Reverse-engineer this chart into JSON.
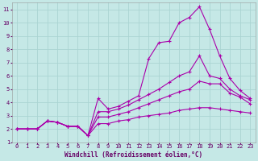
{
  "xlabel": "Windchill (Refroidissement éolien,°C)",
  "bg_color": "#c5e8e6",
  "grid_color": "#aad4d2",
  "line_color": "#aa00aa",
  "xlim": [
    -0.5,
    23.5
  ],
  "ylim": [
    1,
    11.5
  ],
  "xticks": [
    0,
    1,
    2,
    3,
    4,
    5,
    6,
    7,
    8,
    9,
    10,
    11,
    12,
    13,
    14,
    15,
    16,
    17,
    18,
    19,
    20,
    21,
    22,
    23
  ],
  "yticks": [
    1,
    2,
    3,
    4,
    5,
    6,
    7,
    8,
    9,
    10,
    11
  ],
  "line1_x": [
    0,
    1,
    2,
    3,
    4,
    5,
    6,
    7,
    8,
    9,
    10,
    11,
    12,
    13,
    14,
    15,
    16,
    17,
    18,
    19,
    20,
    21,
    22,
    23
  ],
  "line1_y": [
    2,
    2,
    2,
    2.6,
    2.5,
    2.2,
    2.2,
    1.5,
    4.3,
    3.5,
    3.7,
    4.1,
    4.5,
    7.3,
    8.5,
    8.6,
    10.0,
    10.4,
    11.2,
    9.5,
    7.5,
    5.8,
    4.9,
    4.3
  ],
  "line2_x": [
    0,
    1,
    2,
    3,
    4,
    5,
    6,
    7,
    8,
    9,
    10,
    11,
    12,
    13,
    14,
    15,
    16,
    17,
    18,
    19,
    20,
    21,
    22,
    23
  ],
  "line2_y": [
    2,
    2,
    2,
    2.6,
    2.5,
    2.2,
    2.2,
    1.5,
    3.3,
    3.3,
    3.5,
    3.8,
    4.2,
    4.6,
    5.0,
    5.5,
    6.0,
    6.3,
    7.5,
    6.0,
    5.8,
    5.0,
    4.5,
    4.2
  ],
  "line3_x": [
    0,
    1,
    2,
    3,
    4,
    5,
    6,
    7,
    8,
    9,
    10,
    11,
    12,
    13,
    14,
    15,
    16,
    17,
    18,
    19,
    20,
    21,
    22,
    23
  ],
  "line3_y": [
    2,
    2,
    2,
    2.6,
    2.5,
    2.2,
    2.2,
    1.5,
    2.9,
    2.9,
    3.1,
    3.3,
    3.6,
    3.9,
    4.2,
    4.5,
    4.8,
    5.0,
    5.6,
    5.4,
    5.4,
    4.7,
    4.4,
    3.9
  ],
  "line4_x": [
    0,
    1,
    2,
    3,
    4,
    5,
    6,
    7,
    8,
    9,
    10,
    11,
    12,
    13,
    14,
    15,
    16,
    17,
    18,
    19,
    20,
    21,
    22,
    23
  ],
  "line4_y": [
    2,
    2,
    2,
    2.6,
    2.5,
    2.2,
    2.2,
    1.5,
    2.4,
    2.4,
    2.6,
    2.7,
    2.9,
    3.0,
    3.1,
    3.2,
    3.4,
    3.5,
    3.6,
    3.6,
    3.5,
    3.4,
    3.3,
    3.2
  ],
  "tick_color": "#660066",
  "tick_fontsize": 5,
  "xlabel_fontsize": 5.5,
  "marker_size": 3,
  "linewidth": 0.8
}
